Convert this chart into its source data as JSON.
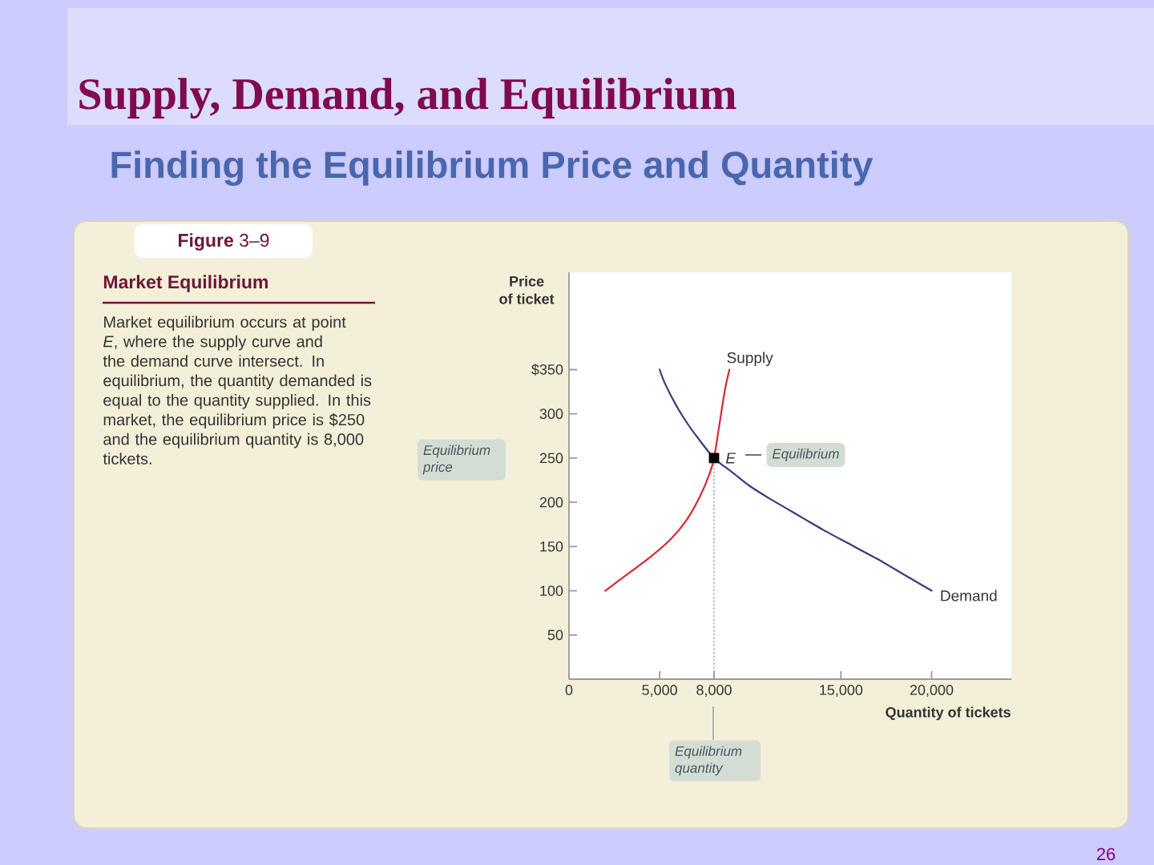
{
  "chart_data": {
    "type": "line",
    "title": "Supply, Demand, and Equilibrium",
    "subtitle": "Finding the Equilibrium Price and Quantity",
    "xlabel": "Quantity of tickets",
    "ylabel": "Price of ticket",
    "xlim": [
      0,
      24400
    ],
    "ylim": [
      0,
      460
    ],
    "xticks": [
      0,
      {
        "value": 5000,
        "label": "5,000"
      },
      {
        "value": 8000,
        "label": "8,000"
      },
      {
        "value": 15000,
        "label": "15,000"
      },
      {
        "value": 20000,
        "label": "20,000"
      }
    ],
    "yticks": [
      50,
      100,
      150,
      200,
      250,
      300,
      {
        "value": 350,
        "label": "$350"
      }
    ],
    "series": [
      {
        "name": "Supply",
        "color": "#d42a35",
        "x": [
          2000,
          3240,
          4420,
          5600,
          6490,
          7230,
          7730,
          8000,
          8320,
          8610,
          8850
        ],
        "values": [
          100,
          119,
          137,
          158,
          180,
          207,
          231,
          250,
          291,
          328,
          350
        ]
      },
      {
        "name": "Demand",
        "color": "#3a3a7e",
        "x": [
          5000,
          5300,
          5900,
          6500,
          7100,
          8000,
          9000,
          10000,
          11000,
          12000,
          13000,
          14000,
          15000,
          16000,
          17000,
          18000,
          19000,
          20000
        ],
        "values": [
          350,
          334,
          310,
          290,
          273,
          250,
          234,
          218,
          205,
          193,
          181,
          169,
          158,
          147,
          136,
          124,
          112,
          100
        ]
      },
      {
        "color": "#8c8c8c",
        "line_style": "dotted",
        "x": [
          8000,
          8000
        ],
        "values": [
          0,
          250
        ]
      },
      {
        "type": "scatter",
        "color": "#000000",
        "marker": "square",
        "x": [
          8000
        ],
        "values": [
          250
        ]
      }
    ],
    "annotations": [
      {
        "text": "E",
        "x": 8000,
        "y": 250
      },
      "**Figure** 3–9",
      "Market Equilibrium",
      "Market equilibrium occurs at point *E*, where the supply curve and the demand curve intersect. In equilibrium, the quantity demanded is equal to the quantity supplied. In this market, the equilibrium price is $250 and the equilibrium quantity is 8,000 tickets.",
      "Equilibrium price",
      "Equilibrium",
      "Equilibrium quantity",
      "26"
    ]
  }
}
